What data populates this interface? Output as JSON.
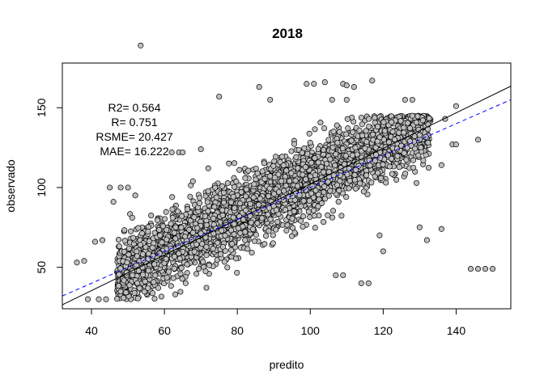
{
  "chart_data": {
    "type": "scatter",
    "title": "2018",
    "xlabel": "predito",
    "ylabel": "observado",
    "xlim": [
      32,
      155
    ],
    "ylim": [
      24,
      178
    ],
    "xticks": [
      40,
      60,
      80,
      100,
      120,
      140
    ],
    "yticks": [
      50,
      100,
      150
    ],
    "grid": false,
    "point_fill": "#bebebe",
    "point_stroke": "#000000",
    "annotations": [
      "R2= 0.564",
      "R= 0.751",
      "RSME= 20.427",
      "MAE= 16.222"
    ],
    "fit_line": {
      "style": "solid",
      "color": "#000000",
      "x": [
        32,
        155
      ],
      "y": [
        26.5,
        163.5
      ]
    },
    "reference_line": {
      "style": "dashed",
      "color": "#0000ff",
      "x": [
        32,
        155
      ],
      "y": [
        32,
        155
      ]
    },
    "points_summary": "dense cloud of several thousand observations; observado ranges ~30-190, predito ranges ~36-150",
    "points": [
      [
        53.5,
        189
      ],
      [
        140,
        151
      ],
      [
        150,
        49
      ],
      [
        146,
        49
      ],
      [
        144,
        49
      ],
      [
        148,
        49
      ],
      [
        36,
        53
      ],
      [
        38,
        54
      ],
      [
        41,
        66
      ],
      [
        43,
        67
      ],
      [
        39,
        30
      ],
      [
        42,
        30
      ],
      [
        44,
        30
      ],
      [
        86,
        163
      ],
      [
        99,
        165
      ],
      [
        101,
        165
      ],
      [
        104,
        166
      ],
      [
        109,
        165
      ],
      [
        110,
        164
      ],
      [
        112,
        163
      ],
      [
        117,
        167
      ],
      [
        75,
        157
      ],
      [
        89,
        155
      ],
      [
        106,
        155
      ],
      [
        110,
        155
      ],
      [
        126,
        155
      ],
      [
        128,
        155
      ],
      [
        137,
        143
      ],
      [
        139,
        127
      ],
      [
        140,
        127
      ],
      [
        131,
        117
      ],
      [
        136,
        114
      ],
      [
        146,
        130
      ],
      [
        132,
        67
      ],
      [
        136,
        74
      ],
      [
        130,
        75
      ],
      [
        109,
        45
      ],
      [
        107,
        45
      ],
      [
        114,
        40
      ],
      [
        116,
        40
      ],
      [
        120,
        60
      ],
      [
        119,
        70
      ],
      [
        64,
        122
      ],
      [
        65,
        122
      ],
      [
        62,
        122
      ],
      [
        70,
        124
      ],
      [
        72,
        112
      ],
      [
        45,
        100
      ],
      [
        46,
        91
      ],
      [
        48,
        100
      ],
      [
        50,
        100
      ],
      [
        52,
        95
      ]
    ]
  }
}
